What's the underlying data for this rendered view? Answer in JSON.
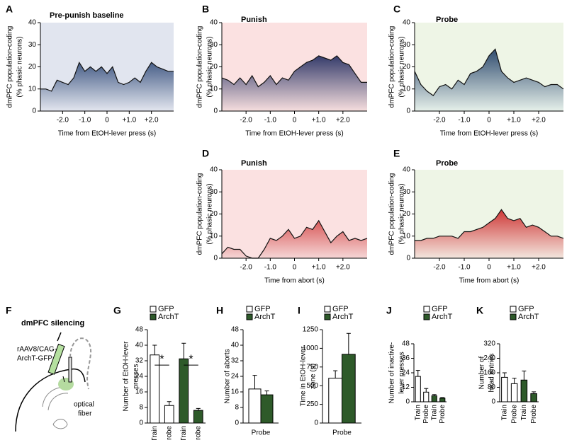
{
  "chart_data": [
    {
      "type": "area",
      "panel_label": "A",
      "title": "Pre-punish  baseline",
      "xlabel": "Time from EtOH-lever press (s)",
      "ylabel": [
        "dmPFC population-coding",
        "(% phasic neurons)"
      ],
      "x": [
        -3,
        -2.75,
        -2.5,
        -2.25,
        -2,
        -1.75,
        -1.5,
        -1.25,
        -1,
        -0.75,
        -0.5,
        -0.25,
        0,
        0.25,
        0.5,
        0.75,
        1,
        1.25,
        1.5,
        1.75,
        2,
        2.25,
        2.5,
        2.75,
        3
      ],
      "values": [
        10,
        10,
        9,
        14,
        13,
        12,
        15,
        22,
        18,
        20,
        18,
        20,
        17,
        20,
        13,
        12,
        13,
        15,
        13,
        18,
        22,
        20,
        19,
        18,
        18
      ],
      "color": "#2b4675",
      "color_bottom": "#e3e6ef",
      "background": "#e1e5ef",
      "xlim": [
        -3,
        3
      ],
      "ylim": [
        0,
        40
      ],
      "yticks": [
        0,
        10,
        20,
        30,
        40
      ],
      "xticks": [
        {
          "value": -2,
          "label": "-2.0"
        },
        {
          "value": -1,
          "label": "-1.0"
        },
        0,
        {
          "value": 1,
          "label": "+1.0"
        },
        {
          "value": 2,
          "label": "+2.0"
        }
      ]
    },
    {
      "type": "area",
      "panel_label": "B",
      "title": "Punish",
      "xlabel": "Time from EtOH-lever press (s)",
      "ylabel": [
        "dmPFC population-coding",
        "(% phasic neurons)"
      ],
      "x": [
        -3,
        -2.75,
        -2.5,
        -2.25,
        -2,
        -1.75,
        -1.5,
        -1.25,
        -1,
        -0.75,
        -0.5,
        -0.25,
        0,
        0.25,
        0.5,
        0.75,
        1,
        1.25,
        1.5,
        1.75,
        2,
        2.25,
        2.5,
        2.75,
        3
      ],
      "values": [
        15,
        14,
        12,
        15,
        12,
        16,
        11,
        13,
        16,
        12,
        15,
        14,
        18,
        20,
        22,
        23,
        25,
        24,
        23,
        25,
        22,
        21,
        17,
        13,
        13
      ],
      "color": "#2d3566",
      "color_bottom": "#f6dede",
      "background": "#fbe1e1",
      "xlim": [
        -3,
        3
      ],
      "ylim": [
        0,
        40
      ],
      "yticks": [
        0,
        10,
        20,
        30,
        40
      ],
      "xticks": [
        {
          "value": -2,
          "label": "-2.0"
        },
        {
          "value": -1,
          "label": "-1.0"
        },
        0,
        {
          "value": 1,
          "label": "+1.0"
        },
        {
          "value": 2,
          "label": "+2.0"
        }
      ]
    },
    {
      "type": "area",
      "panel_label": "C",
      "title": "Probe",
      "xlabel": "Time from EtOH-lever press (s)",
      "ylabel": [
        "dmPFC population-coding",
        "(% phasic neurons)"
      ],
      "x": [
        -3,
        -2.75,
        -2.5,
        -2.25,
        -2,
        -1.75,
        -1.5,
        -1.25,
        -1,
        -0.75,
        -0.5,
        -0.25,
        0,
        0.25,
        0.5,
        0.75,
        1,
        1.25,
        1.5,
        1.75,
        2,
        2.25,
        2.5,
        2.75,
        3
      ],
      "values": [
        18,
        12,
        9,
        7,
        11,
        12,
        10,
        14,
        12,
        17,
        18,
        20,
        25,
        28,
        18,
        15,
        13,
        14,
        15,
        14,
        13,
        11,
        12,
        12,
        10
      ],
      "color": "#3d5878",
      "color_bottom": "#e6f0ea",
      "background": "#eef5e6",
      "xlim": [
        -3,
        3
      ],
      "ylim": [
        0,
        40
      ],
      "yticks": [
        0,
        10,
        20,
        30,
        40
      ],
      "xticks": [
        {
          "value": -2,
          "label": "-2.0"
        },
        {
          "value": -1,
          "label": "-1.0"
        },
        0,
        {
          "value": 1,
          "label": "+1.0"
        },
        {
          "value": 2,
          "label": "+2.0"
        }
      ]
    },
    {
      "type": "area",
      "panel_label": "D",
      "title": "Punish",
      "xlabel": "Time from abort (s)",
      "ylabel": [
        "dmPFC population-coding",
        "(% phasic neurons)"
      ],
      "x": [
        -3,
        -2.75,
        -2.5,
        -2.25,
        -2,
        -1.75,
        -1.5,
        -1.25,
        -1,
        -0.75,
        -0.5,
        -0.25,
        0,
        0.25,
        0.5,
        0.75,
        1,
        1.25,
        1.5,
        1.75,
        2,
        2.25,
        2.5,
        2.75,
        3
      ],
      "values": [
        2,
        5,
        4,
        4,
        1,
        0,
        0,
        4,
        9,
        8,
        10,
        13,
        9,
        10,
        14,
        13,
        17,
        12,
        7,
        10,
        12,
        8,
        9,
        8,
        9
      ],
      "color": "#c81818",
      "color_bottom": "#f6d6d6",
      "background": "#fbe1e1",
      "xlim": [
        -3,
        3
      ],
      "ylim": [
        0,
        40
      ],
      "yticks": [
        0,
        10,
        20,
        30,
        40
      ],
      "xticks": [
        {
          "value": -2,
          "label": "-2.0"
        },
        {
          "value": -1,
          "label": "-1.0"
        },
        0,
        {
          "value": 1,
          "label": "+1.0"
        },
        {
          "value": 2,
          "label": "+2.0"
        }
      ]
    },
    {
      "type": "area",
      "panel_label": "E",
      "title": "Probe",
      "xlabel": "Time from abort (s)",
      "ylabel": [
        "dmPFC population-coding",
        "(% phasic neurons)"
      ],
      "x": [
        -3,
        -2.75,
        -2.5,
        -2.25,
        -2,
        -1.75,
        -1.5,
        -1.25,
        -1,
        -0.75,
        -0.5,
        -0.25,
        0,
        0.25,
        0.5,
        0.75,
        1,
        1.25,
        1.5,
        1.75,
        2,
        2.25,
        2.5,
        2.75,
        3
      ],
      "values": [
        8,
        8,
        9,
        9,
        10,
        10,
        10,
        9,
        12,
        12,
        13,
        14,
        16,
        18,
        22,
        18,
        17,
        18,
        14,
        15,
        14,
        12,
        10,
        10,
        9
      ],
      "color": "#c81818",
      "color_bottom": "#f3e6de",
      "background": "#eef5e6",
      "xlim": [
        -3,
        3
      ],
      "ylim": [
        0,
        40
      ],
      "yticks": [
        0,
        10,
        20,
        30,
        40
      ],
      "xticks": [
        {
          "value": -2,
          "label": "-2.0"
        },
        {
          "value": -1,
          "label": "-1.0"
        },
        0,
        {
          "value": 1,
          "label": "+1.0"
        },
        {
          "value": 2,
          "label": "+2.0"
        }
      ]
    },
    {
      "type": "bar",
      "panel_label": "G",
      "ylabel": [
        "Number of EtOH-lever",
        "presses"
      ],
      "ylabel_color": "#1f3a7a",
      "categories": [
        "Train",
        "Probe",
        "Train",
        "Probe"
      ],
      "series": [
        {
          "name": "GFP",
          "color": "#ffffff",
          "values": [
            35,
            9,
            null,
            null
          ],
          "errors": [
            5,
            2,
            null,
            null
          ]
        },
        {
          "name": "ArchT",
          "color": "#2e5a2a",
          "values": [
            null,
            null,
            33,
            6.5
          ],
          "errors": [
            null,
            null,
            8,
            1
          ]
        }
      ],
      "annotations": [
        "*",
        "*"
      ],
      "ylim": [
        0,
        48
      ],
      "yticks": [
        0,
        8,
        16,
        24,
        32,
        40,
        48
      ]
    },
    {
      "type": "bar",
      "panel_label": "H",
      "ylabel": [
        "Number of aborts"
      ],
      "ylabel_color": "#c00000",
      "categories": [
        "Probe"
      ],
      "series": [
        {
          "name": "GFP",
          "color": "#ffffff",
          "values": [
            17.5
          ],
          "errors": [
            7
          ]
        },
        {
          "name": "ArchT",
          "color": "#2e5a2a",
          "values": [
            14.5
          ],
          "errors": [
            2
          ]
        }
      ],
      "ylim": [
        0,
        48
      ],
      "yticks": [
        0,
        8,
        16,
        24,
        32,
        40,
        48
      ]
    },
    {
      "type": "bar",
      "panel_label": "I",
      "ylabel": [
        "Time in EtOH-lever",
        "zone (s)"
      ],
      "ylabel_color": "#000000",
      "categories": [
        "Probe"
      ],
      "series": [
        {
          "name": "GFP",
          "color": "#ffffff",
          "values": [
            600
          ],
          "errors": [
            100
          ]
        },
        {
          "name": "ArchT",
          "color": "#2e5a2a",
          "values": [
            920
          ],
          "errors": [
            280
          ]
        }
      ],
      "ylim": [
        0,
        1250
      ],
      "yticks": [
        0,
        250,
        500,
        750,
        1000,
        1250
      ]
    },
    {
      "type": "bar",
      "panel_label": "J",
      "ylabel": [
        "Number of inactive-",
        "lever presses"
      ],
      "ylabel_color": "#000000",
      "categories": [
        "Train",
        "Probe",
        "Train",
        "Probe"
      ],
      "series": [
        {
          "name": "GFP",
          "color": "#ffffff",
          "values": [
            21,
            8,
            null,
            null
          ],
          "errors": [
            5,
            3,
            null,
            null
          ]
        },
        {
          "name": "ArchT",
          "color": "#2e5a2a",
          "values": [
            null,
            null,
            5,
            3
          ],
          "errors": [
            null,
            null,
            1,
            0.5
          ]
        }
      ],
      "ylim": [
        0,
        48
      ],
      "yticks": [
        0,
        12,
        24,
        36,
        48
      ]
    },
    {
      "type": "bar",
      "panel_label": "K",
      "ylabel": [
        "Number of",
        "head entries"
      ],
      "ylabel_color": "#000000",
      "categories": [
        "Train",
        "Probe",
        "Train",
        "Probe"
      ],
      "series": [
        {
          "name": "GFP",
          "color": "#ffffff",
          "values": [
            135,
            100,
            null,
            null
          ],
          "errors": [
            25,
            30,
            null,
            null
          ]
        },
        {
          "name": "ArchT",
          "color": "#2e5a2a",
          "values": [
            null,
            null,
            120,
            45
          ],
          "errors": [
            null,
            null,
            50,
            10
          ]
        }
      ],
      "ylim": [
        0,
        320
      ],
      "yticks": [
        0,
        80,
        160,
        240,
        320
      ]
    }
  ],
  "diagram": {
    "panel_label": "F",
    "title": "dmPFC silencing",
    "virus": [
      "rAAV8/CAG-",
      "ArchT-GFP"
    ],
    "fiber": [
      "optical",
      "fiber"
    ]
  }
}
